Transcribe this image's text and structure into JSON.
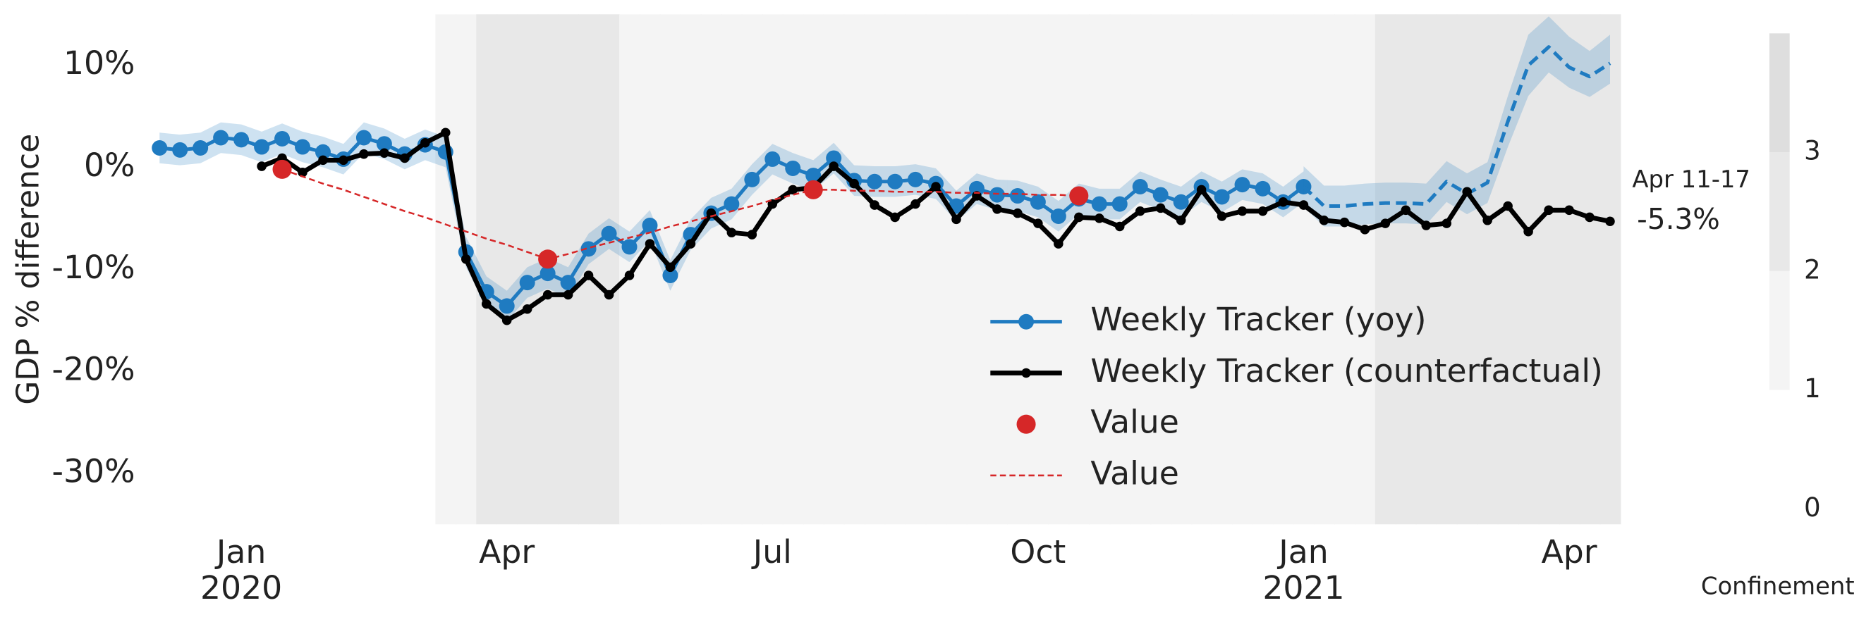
{
  "chart_data": {
    "type": "line",
    "y_label": "GDP % difference",
    "ylim": [
      -35,
      15
    ],
    "yticks": [
      {
        "value": 10,
        "label": "10%"
      },
      {
        "value": 0,
        "label": "0%"
      },
      {
        "value": -10,
        "label": "-10%"
      },
      {
        "value": -20,
        "label": "-20%"
      },
      {
        "value": -30,
        "label": "-30%"
      }
    ],
    "legend": "lower right",
    "categories": [
      null,
      null,
      null,
      null,
      "Jan",
      null,
      null,
      null,
      null,
      null,
      null,
      null,
      null,
      null,
      null,
      null,
      null,
      "Apr",
      null,
      null,
      null,
      null,
      null,
      null,
      null,
      null,
      null,
      null,
      null,
      null,
      "Jul",
      null,
      null,
      null,
      null,
      null,
      null,
      null,
      null,
      null,
      null,
      null,
      null,
      "Oct",
      null,
      null,
      null,
      null,
      null,
      null,
      null,
      null,
      null,
      null,
      null,
      null,
      "Jan",
      null,
      null,
      null,
      null,
      null,
      null,
      null,
      null,
      null,
      null,
      null,
      null,
      "Apr",
      null,
      null
    ],
    "x_year_labels": [
      null,
      null,
      null,
      null,
      "2020",
      null,
      null,
      null,
      null,
      null,
      null,
      null,
      null,
      null,
      null,
      null,
      null,
      null,
      null,
      null,
      null,
      null,
      null,
      null,
      null,
      null,
      null,
      null,
      null,
      null,
      null,
      null,
      null,
      null,
      null,
      null,
      null,
      null,
      null,
      null,
      null,
      null,
      null,
      null,
      null,
      null,
      null,
      null,
      null,
      null,
      null,
      null,
      null,
      null,
      null,
      null,
      "2021",
      null,
      null,
      null,
      null,
      null,
      null,
      null,
      null,
      null,
      null,
      null,
      null,
      null,
      null,
      null
    ],
    "annotation": "Apr 11-17",
    "series": [
      {
        "name": "Weekly Tracker (yoy)",
        "color": "#1f7bc1",
        "mode": "lines+markers",
        "linewidth": 3,
        "values": [
          1.9,
          1.7,
          1.9,
          2.9,
          2.7,
          2.0,
          2.8,
          2.0,
          1.5,
          0.8,
          2.9,
          2.3,
          1.3,
          2.2,
          1.5,
          -8.3,
          -12.2,
          -13.6,
          -11.3,
          -10.4,
          -11.3,
          -8.0,
          -6.5,
          -7.8,
          -5.7,
          -10.6,
          -6.6,
          -4.5,
          -3.6,
          -1.2,
          0.8,
          -0.1,
          -0.8,
          0.9,
          -1.3,
          -1.4,
          -1.4,
          -1.2,
          -1.6,
          -3.8,
          -2.1,
          -2.7,
          -2.8,
          -3.4,
          -4.8,
          -3.1,
          -3.6,
          -3.6,
          -1.9,
          -2.7,
          -3.4,
          -1.9,
          -2.9,
          -1.7,
          -2.1,
          -3.4,
          -1.9,
          null,
          null,
          null,
          null,
          null,
          null,
          null,
          null,
          null,
          null,
          null,
          null,
          null,
          null,
          null
        ],
        "lower": [
          0.4,
          0.2,
          0.4,
          1.4,
          1.2,
          0.5,
          1.3,
          0.5,
          0.0,
          -0.7,
          1.4,
          0.8,
          -0.2,
          0.7,
          0.0,
          -9.8,
          -13.7,
          -15.1,
          -12.8,
          -11.9,
          -12.8,
          -9.5,
          -8.0,
          -9.3,
          -7.2,
          -12.1,
          -8.1,
          -6.0,
          -5.1,
          -2.7,
          -0.7,
          -1.6,
          -2.3,
          -0.6,
          -2.8,
          -2.9,
          -2.9,
          -2.7,
          -3.1,
          -5.3,
          -3.6,
          -4.2,
          -4.3,
          -4.9,
          -6.3,
          -4.6,
          -5.1,
          -5.1,
          -3.4,
          -4.2,
          -4.9,
          -3.4,
          -4.4,
          -3.2,
          -3.6,
          -4.9,
          -3.4,
          null,
          null,
          null,
          null,
          null,
          null,
          null,
          null,
          null,
          null,
          null,
          null,
          null,
          null,
          null
        ],
        "upper": [
          3.4,
          3.2,
          3.4,
          4.4,
          4.2,
          3.5,
          4.3,
          3.5,
          3.0,
          2.3,
          4.4,
          3.8,
          2.8,
          3.7,
          3.0,
          -6.8,
          -10.7,
          -12.1,
          -9.8,
          -8.9,
          -9.8,
          -6.5,
          -5.0,
          -6.3,
          -4.2,
          -9.1,
          -5.1,
          -3.0,
          -2.1,
          0.3,
          2.3,
          1.4,
          0.7,
          2.4,
          0.2,
          0.1,
          0.1,
          0.3,
          -0.1,
          -2.3,
          -0.6,
          -1.2,
          -1.3,
          -1.9,
          -3.3,
          -1.6,
          -2.1,
          -2.1,
          -0.4,
          -1.2,
          -1.9,
          -0.4,
          -1.4,
          -0.2,
          -0.6,
          -1.9,
          -0.4,
          null,
          null,
          null,
          null,
          null,
          null,
          null,
          null,
          null,
          null,
          null,
          null,
          null,
          null,
          null
        ]
      },
      {
        "color": "#1f7bc1",
        "mode": "lines",
        "dash": true,
        "linewidth": 3,
        "values": [
          null,
          null,
          null,
          null,
          null,
          null,
          null,
          null,
          null,
          null,
          null,
          null,
          null,
          null,
          null,
          null,
          null,
          null,
          null,
          null,
          null,
          null,
          null,
          null,
          null,
          null,
          null,
          null,
          null,
          null,
          null,
          null,
          null,
          null,
          null,
          null,
          null,
          null,
          null,
          null,
          null,
          null,
          null,
          null,
          null,
          null,
          null,
          null,
          null,
          null,
          null,
          null,
          null,
          null,
          null,
          null,
          -1.9,
          -3.8,
          -3.8,
          -3.6,
          -3.5,
          -3.5,
          -3.6,
          -1.4,
          -2.6,
          -1.5,
          4.5,
          10.0,
          11.8,
          9.8,
          8.9,
          10.2
        ],
        "lower": [
          null,
          null,
          null,
          null,
          null,
          null,
          null,
          null,
          null,
          null,
          null,
          null,
          null,
          null,
          null,
          null,
          null,
          null,
          null,
          null,
          null,
          null,
          null,
          null,
          null,
          null,
          null,
          null,
          null,
          null,
          null,
          null,
          null,
          null,
          null,
          null,
          null,
          null,
          null,
          null,
          null,
          null,
          null,
          null,
          null,
          null,
          null,
          null,
          null,
          null,
          null,
          null,
          null,
          null,
          null,
          null,
          -3.9,
          -5.8,
          -5.8,
          -5.6,
          -5.5,
          -5.5,
          -5.6,
          -3.4,
          -4.6,
          -3.5,
          2.0,
          7.0,
          9.3,
          7.8,
          6.9,
          8.2
        ],
        "upper": [
          null,
          null,
          null,
          null,
          null,
          null,
          null,
          null,
          null,
          null,
          null,
          null,
          null,
          null,
          null,
          null,
          null,
          null,
          null,
          null,
          null,
          null,
          null,
          null,
          null,
          null,
          null,
          null,
          null,
          null,
          null,
          null,
          null,
          null,
          null,
          null,
          null,
          null,
          null,
          null,
          null,
          null,
          null,
          null,
          null,
          null,
          null,
          null,
          null,
          null,
          null,
          null,
          null,
          null,
          null,
          null,
          0.1,
          -1.8,
          -1.8,
          -1.6,
          -1.5,
          -1.5,
          -1.6,
          0.6,
          -0.6,
          0.5,
          7.0,
          13.0,
          14.8,
          12.8,
          11.4,
          13.0
        ]
      },
      {
        "name": "Weekly Tracker (counterfactual)",
        "color": "#000000",
        "mode": "lines+markers",
        "linewidth": 4,
        "values": [
          null,
          null,
          null,
          null,
          null,
          0.1,
          0.9,
          -0.5,
          0.7,
          0.7,
          1.3,
          1.4,
          0.9,
          2.4,
          3.4,
          -9.0,
          -13.4,
          -15.0,
          -13.9,
          -12.5,
          -12.5,
          -10.6,
          -12.5,
          -10.6,
          -7.5,
          -9.8,
          -7.5,
          -4.5,
          -6.4,
          -6.6,
          -3.6,
          -2.2,
          -2.0,
          0.1,
          -1.6,
          -3.7,
          -4.9,
          -3.6,
          -1.9,
          -5.1,
          -2.8,
          -4.1,
          -4.5,
          -5.5,
          -7.5,
          -4.9,
          -5.0,
          -5.8,
          -4.3,
          -4.0,
          -5.2,
          -2.2,
          -4.8,
          -4.3,
          -4.3,
          -3.4,
          -3.7,
          -5.2,
          -5.4,
          -6.1,
          -5.5,
          -4.2,
          -5.7,
          -5.5,
          -2.4,
          -5.2,
          -3.8,
          -6.3,
          -4.2,
          -4.2,
          -4.9,
          -5.3
        ],
        "value_labels": [
          null,
          null,
          null,
          null,
          null,
          null,
          null,
          null,
          null,
          null,
          null,
          null,
          null,
          null,
          null,
          null,
          null,
          null,
          null,
          null,
          null,
          null,
          null,
          null,
          null,
          null,
          null,
          null,
          null,
          null,
          null,
          null,
          null,
          null,
          null,
          null,
          null,
          null,
          null,
          null,
          null,
          null,
          null,
          null,
          null,
          null,
          null,
          null,
          null,
          null,
          null,
          null,
          null,
          null,
          null,
          null,
          null,
          null,
          null,
          null,
          null,
          null,
          null,
          null,
          null,
          null,
          null,
          null,
          null,
          null,
          null,
          "-5.3%"
        ]
      },
      {
        "name": "Value",
        "color": "#d62728",
        "mode": "markers",
        "values": [
          null,
          null,
          null,
          null,
          null,
          null,
          -0.2,
          null,
          null,
          null,
          null,
          null,
          null,
          null,
          null,
          null,
          null,
          null,
          null,
          -9.0,
          null,
          null,
          null,
          null,
          null,
          null,
          null,
          null,
          null,
          null,
          null,
          null,
          -2.2,
          null,
          null,
          null,
          null,
          null,
          null,
          null,
          null,
          null,
          null,
          null,
          null,
          -2.8,
          null,
          null,
          null,
          null,
          null,
          null,
          null,
          null,
          null,
          null,
          null,
          null,
          null,
          null,
          null,
          null,
          null,
          null,
          null,
          null,
          null,
          null,
          null,
          null,
          null,
          null
        ]
      },
      {
        "name": "Value",
        "color": "#d62728",
        "mode": "lines",
        "dash": true,
        "linewidth": 1.5,
        "values": [
          null,
          null,
          null,
          null,
          null,
          null,
          -0.2,
          -0.9,
          -1.6,
          -2.2,
          -2.9,
          -3.6,
          -4.3,
          -4.9,
          -5.6,
          -6.3,
          -7.0,
          -7.6,
          -8.3,
          -9.0,
          -8.5,
          -7.9,
          -7.4,
          -6.9,
          -6.4,
          -5.8,
          -5.3,
          -4.8,
          -4.3,
          -3.8,
          -3.2,
          -2.7,
          -2.2,
          -2.2,
          -2.3,
          -2.3,
          -2.4,
          -2.4,
          -2.4,
          -2.5,
          -2.5,
          -2.6,
          -2.6,
          -2.7,
          -2.7,
          -2.8,
          null,
          null,
          null,
          null,
          null,
          null,
          null,
          null,
          null,
          null,
          null,
          null,
          null,
          null,
          null,
          null,
          null,
          null,
          null,
          null,
          null,
          null,
          null,
          null,
          null,
          null
        ]
      }
    ],
    "confinement": {
      "label": "Confinement",
      "lim": [
        0,
        4
      ],
      "ticks": [
        0,
        1,
        2,
        3
      ],
      "colors": [
        "#f4f4f4",
        "#e8e8e8",
        "#dedede"
      ],
      "levels": [
        0,
        0,
        0,
        0,
        0,
        0,
        0,
        0,
        0,
        0,
        0,
        0,
        0,
        0,
        1,
        1,
        2,
        2,
        2,
        2,
        2,
        2,
        2,
        1,
        1,
        1,
        1,
        1,
        1,
        1,
        1,
        1,
        1,
        1,
        1,
        1,
        1,
        1,
        1,
        1,
        1,
        1,
        1,
        1,
        1,
        1,
        1,
        1,
        1,
        1,
        1,
        1,
        1,
        1,
        1,
        1,
        1,
        1,
        1,
        1,
        2,
        2,
        2,
        2,
        2,
        2,
        2,
        2,
        2,
        2,
        2,
        2
      ]
    }
  }
}
